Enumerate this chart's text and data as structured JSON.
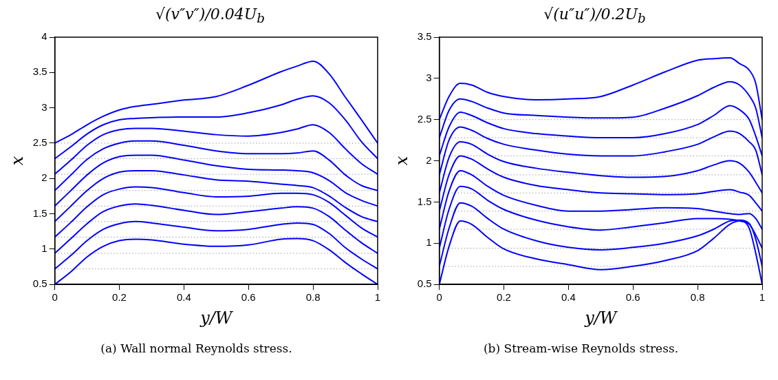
{
  "chart_data": [
    {
      "type": "line",
      "title": "√(v″v″)/0.04U$_{b}$",
      "xlabel": "y/W",
      "ylabel": "x",
      "marker": "none",
      "line_style": "solid",
      "grid": false,
      "x": [
        0,
        0.05,
        0.1,
        0.15,
        0.2,
        0.25,
        0.3,
        0.4,
        0.5,
        0.6,
        0.7,
        0.75,
        0.8,
        0.85,
        0.9,
        0.95,
        1
      ],
      "xlim": [
        0,
        1
      ],
      "xticks": [
        0,
        0.2,
        0.4,
        0.6,
        0.8,
        1
      ],
      "ylim": [
        0.5,
        4
      ],
      "yticks": [
        0.5,
        1,
        1.5,
        2,
        2.5,
        3,
        3.5,
        4
      ],
      "series": [
        {
          "color": "#0000ff",
          "values": [
            0.5,
            0.68,
            0.89,
            1.04,
            1.12,
            1.14,
            1.13,
            1.07,
            1.04,
            1.06,
            1.14,
            1.15,
            1.12,
            0.99,
            0.81,
            0.65,
            0.5
          ]
        },
        {
          "color": "#0000ff",
          "values": [
            0.72,
            0.91,
            1.12,
            1.28,
            1.36,
            1.39,
            1.37,
            1.31,
            1.26,
            1.28,
            1.35,
            1.37,
            1.35,
            1.22,
            1.02,
            0.86,
            0.72
          ]
        },
        {
          "color": "#0000ff",
          "values": [
            0.94,
            1.15,
            1.36,
            1.53,
            1.61,
            1.64,
            1.62,
            1.55,
            1.49,
            1.53,
            1.58,
            1.6,
            1.58,
            1.46,
            1.27,
            1.09,
            0.94
          ]
        },
        {
          "color": "#0000ff",
          "values": [
            1.17,
            1.38,
            1.6,
            1.77,
            1.85,
            1.88,
            1.87,
            1.8,
            1.74,
            1.75,
            1.79,
            1.79,
            1.77,
            1.66,
            1.48,
            1.3,
            1.17
          ]
        },
        {
          "color": "#0000ff",
          "values": [
            1.39,
            1.61,
            1.83,
            2.0,
            2.09,
            2.11,
            2.11,
            2.05,
            1.98,
            1.96,
            1.92,
            1.9,
            1.87,
            1.75,
            1.59,
            1.46,
            1.39
          ]
        },
        {
          "color": "#0000ff",
          "values": [
            1.61,
            1.83,
            2.05,
            2.22,
            2.31,
            2.33,
            2.33,
            2.26,
            2.18,
            2.13,
            2.12,
            2.11,
            2.08,
            1.97,
            1.8,
            1.69,
            1.61
          ]
        },
        {
          "color": "#0000ff",
          "values": [
            1.83,
            2.05,
            2.27,
            2.42,
            2.5,
            2.53,
            2.53,
            2.47,
            2.39,
            2.35,
            2.35,
            2.36,
            2.39,
            2.26,
            2.05,
            1.9,
            1.83
          ]
        },
        {
          "color": "#0000ff",
          "values": [
            2.06,
            2.26,
            2.47,
            2.62,
            2.69,
            2.71,
            2.71,
            2.67,
            2.62,
            2.6,
            2.65,
            2.7,
            2.76,
            2.65,
            2.42,
            2.21,
            2.06
          ]
        },
        {
          "color": "#0000ff",
          "values": [
            2.28,
            2.45,
            2.63,
            2.76,
            2.83,
            2.85,
            2.86,
            2.87,
            2.87,
            2.93,
            3.04,
            3.12,
            3.17,
            3.07,
            2.83,
            2.52,
            2.28
          ]
        },
        {
          "color": "#0000ff",
          "values": [
            2.5,
            2.62,
            2.76,
            2.88,
            2.97,
            3.02,
            3.05,
            3.11,
            3.16,
            3.32,
            3.51,
            3.59,
            3.66,
            3.48,
            3.15,
            2.83,
            2.5
          ]
        }
      ],
      "ref_lines": [
        {
          "axis": "y",
          "value": 0.72,
          "color": "#999999",
          "line_style": "dotted"
        },
        {
          "axis": "y",
          "value": 0.94,
          "color": "#999999",
          "line_style": "dotted"
        },
        {
          "axis": "y",
          "value": 1.17,
          "color": "#999999",
          "line_style": "dotted"
        },
        {
          "axis": "y",
          "value": 1.39,
          "color": "#999999",
          "line_style": "dotted"
        },
        {
          "axis": "y",
          "value": 1.61,
          "color": "#999999",
          "line_style": "dotted"
        },
        {
          "axis": "y",
          "value": 1.83,
          "color": "#999999",
          "line_style": "dotted"
        },
        {
          "axis": "y",
          "value": 2.06,
          "color": "#999999",
          "line_style": "dotted"
        },
        {
          "axis": "y",
          "value": 2.28,
          "color": "#999999",
          "line_style": "dotted"
        },
        {
          "axis": "y",
          "value": 2.5,
          "color": "#999999",
          "line_style": "dotted"
        }
      ],
      "annotations": [
        "(a) Wall normal Reynolds stress."
      ]
    },
    {
      "type": "line",
      "title": "√(u″u″)/0.2U$_{b}$",
      "xlabel": "y/W",
      "ylabel": "x",
      "marker": "none",
      "line_style": "solid",
      "grid": false,
      "x": [
        0,
        0.03,
        0.065,
        0.1,
        0.15,
        0.2,
        0.3,
        0.4,
        0.5,
        0.6,
        0.7,
        0.8,
        0.85,
        0.9,
        0.93,
        0.96,
        0.98,
        1
      ],
      "xlim": [
        0,
        1
      ],
      "xticks": [
        0,
        0.2,
        0.4,
        0.6,
        0.8,
        1
      ],
      "ylim": [
        0.5,
        3.5
      ],
      "yticks": [
        0.5,
        1,
        1.5,
        2,
        2.5,
        3,
        3.5
      ],
      "series": [
        {
          "color": "#0000ff",
          "values": [
            0.5,
            0.96,
            1.27,
            1.23,
            1.07,
            0.93,
            0.81,
            0.74,
            0.68,
            0.72,
            0.79,
            0.91,
            1.06,
            1.23,
            1.27,
            1.18,
            0.88,
            0.5
          ]
        },
        {
          "color": "#0000ff",
          "values": [
            0.72,
            1.18,
            1.49,
            1.45,
            1.3,
            1.17,
            1.03,
            0.95,
            0.92,
            0.95,
            1.0,
            1.09,
            1.17,
            1.27,
            1.28,
            1.24,
            1.05,
            0.72
          ]
        },
        {
          "color": "#0000ff",
          "values": [
            0.94,
            1.41,
            1.69,
            1.66,
            1.52,
            1.41,
            1.28,
            1.2,
            1.16,
            1.2,
            1.25,
            1.3,
            1.3,
            1.29,
            1.27,
            1.23,
            1.1,
            0.94
          ]
        },
        {
          "color": "#0000ff",
          "values": [
            1.17,
            1.63,
            1.88,
            1.83,
            1.69,
            1.58,
            1.46,
            1.39,
            1.39,
            1.41,
            1.43,
            1.42,
            1.39,
            1.36,
            1.35,
            1.36,
            1.3,
            1.17
          ]
        },
        {
          "color": "#0000ff",
          "values": [
            1.39,
            1.83,
            2.06,
            2.02,
            1.9,
            1.8,
            1.7,
            1.65,
            1.61,
            1.6,
            1.59,
            1.6,
            1.63,
            1.65,
            1.62,
            1.58,
            1.49,
            1.39
          ]
        },
        {
          "color": "#0000ff",
          "values": [
            1.61,
            2.04,
            2.23,
            2.2,
            2.08,
            1.99,
            1.91,
            1.86,
            1.82,
            1.8,
            1.81,
            1.88,
            1.95,
            2.0,
            1.97,
            1.86,
            1.74,
            1.61
          ]
        },
        {
          "color": "#0000ff",
          "values": [
            1.83,
            2.25,
            2.41,
            2.37,
            2.27,
            2.2,
            2.13,
            2.08,
            2.06,
            2.06,
            2.11,
            2.2,
            2.29,
            2.36,
            2.33,
            2.23,
            2.13,
            1.83
          ]
        },
        {
          "color": "#0000ff",
          "values": [
            2.06,
            2.41,
            2.59,
            2.55,
            2.46,
            2.39,
            2.33,
            2.3,
            2.28,
            2.28,
            2.33,
            2.44,
            2.55,
            2.67,
            2.62,
            2.5,
            2.3,
            2.06
          ]
        },
        {
          "color": "#0000ff",
          "values": [
            2.28,
            2.61,
            2.75,
            2.72,
            2.64,
            2.58,
            2.55,
            2.53,
            2.52,
            2.53,
            2.64,
            2.79,
            2.89,
            2.96,
            2.92,
            2.79,
            2.64,
            2.28
          ]
        },
        {
          "color": "#0000ff",
          "values": [
            2.5,
            2.78,
            2.94,
            2.92,
            2.83,
            2.78,
            2.74,
            2.75,
            2.78,
            2.92,
            3.08,
            3.22,
            3.24,
            3.25,
            3.18,
            3.1,
            2.94,
            2.5
          ]
        }
      ],
      "ref_lines": [
        {
          "axis": "y",
          "value": 0.72,
          "color": "#999999",
          "line_style": "dotted"
        },
        {
          "axis": "y",
          "value": 0.94,
          "color": "#999999",
          "line_style": "dotted"
        },
        {
          "axis": "y",
          "value": 1.17,
          "color": "#999999",
          "line_style": "dotted"
        },
        {
          "axis": "y",
          "value": 1.39,
          "color": "#999999",
          "line_style": "dotted"
        },
        {
          "axis": "y",
          "value": 1.61,
          "color": "#999999",
          "line_style": "dotted"
        },
        {
          "axis": "y",
          "value": 1.83,
          "color": "#999999",
          "line_style": "dotted"
        },
        {
          "axis": "y",
          "value": 2.06,
          "color": "#999999",
          "line_style": "dotted"
        },
        {
          "axis": "y",
          "value": 2.28,
          "color": "#999999",
          "line_style": "dotted"
        },
        {
          "axis": "y",
          "value": 2.5,
          "color": "#999999",
          "line_style": "dotted"
        }
      ],
      "annotations": [
        "(b) Stream-wise Reynolds stress."
      ]
    }
  ]
}
